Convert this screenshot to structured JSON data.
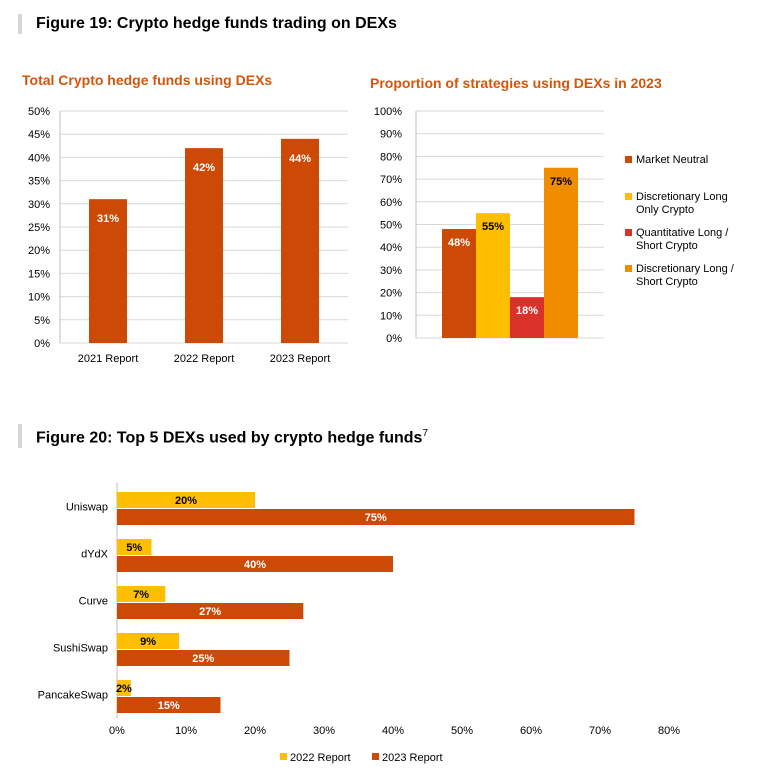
{
  "figure19": {
    "title": "Figure 19: Crypto hedge funds trading on DEXs"
  },
  "figure20": {
    "title": "Figure 20: Top 5 DEXs used by crypto hedge funds",
    "footnote": "7"
  },
  "colors": {
    "rust": "#cc4a06",
    "yellow": "#ffbf00",
    "red": "#d9322a",
    "orange": "#f08c00",
    "grid": "#d9d9d9"
  },
  "chart_data": [
    {
      "id": "total",
      "type": "bar",
      "title": "Total Crypto hedge funds using DEXs",
      "categories": [
        "2021 Report",
        "2022 Report",
        "2023 Report"
      ],
      "values": [
        31,
        42,
        44
      ],
      "labels": [
        "31%",
        "42%",
        "44%"
      ],
      "ylim": [
        0,
        50
      ],
      "yticks": [
        "0%",
        "5%",
        "10%",
        "15%",
        "20%",
        "25%",
        "30%",
        "35%",
        "40%",
        "45%",
        "50%"
      ],
      "color": "#cc4a06"
    },
    {
      "id": "strategies",
      "type": "bar",
      "title": "Proportion of strategies using DEXs in 2023",
      "ylim": [
        0,
        100
      ],
      "yticks": [
        "0%",
        "10%",
        "20%",
        "30%",
        "40%",
        "50%",
        "60%",
        "70%",
        "80%",
        "90%",
        "100%"
      ],
      "series": [
        {
          "name": "Market Neutral",
          "name_lines": [
            "Market Neutral"
          ],
          "value": 48,
          "label": "48%",
          "color": "#cc4a06",
          "label_color": "#ffffff"
        },
        {
          "name": "Discretionary Long Only Crypto",
          "name_lines": [
            "Discretionary Long",
            "Only Crypto"
          ],
          "value": 55,
          "label": "55%",
          "color": "#ffbf00",
          "label_color": "#000000"
        },
        {
          "name": "Quantitative Long / Short Crypto",
          "name_lines": [
            "Quantitative Long /",
            "Short Crypto"
          ],
          "value": 18,
          "label": "18%",
          "color": "#d9322a",
          "label_color": "#ffffff"
        },
        {
          "name": "Discretionary Long / Short Crypto",
          "name_lines": [
            "Discretionary Long /",
            "Short Crypto"
          ],
          "value": 75,
          "label": "75%",
          "color": "#f08c00",
          "label_color": "#000000"
        }
      ]
    },
    {
      "id": "dexs",
      "type": "bar",
      "orientation": "horizontal",
      "categories": [
        "Uniswap",
        "dYdX",
        "Curve",
        "SushiSwap",
        "PancakeSwap"
      ],
      "xlim": [
        0,
        80
      ],
      "xticks": [
        "0%",
        "10%",
        "20%",
        "30%",
        "40%",
        "50%",
        "60%",
        "70%",
        "80%"
      ],
      "series": [
        {
          "name": "2022 Report",
          "values": [
            20,
            5,
            7,
            9,
            2
          ],
          "labels": [
            "20%",
            "5%",
            "7%",
            "9%",
            "2%"
          ],
          "color": "#ffbf00",
          "label_color": "#000000"
        },
        {
          "name": "2023 Report",
          "values": [
            75,
            40,
            27,
            25,
            15
          ],
          "labels": [
            "75%",
            "40%",
            "27%",
            "25%",
            "15%"
          ],
          "color": "#cc4a06",
          "label_color": "#ffffff"
        }
      ]
    }
  ]
}
